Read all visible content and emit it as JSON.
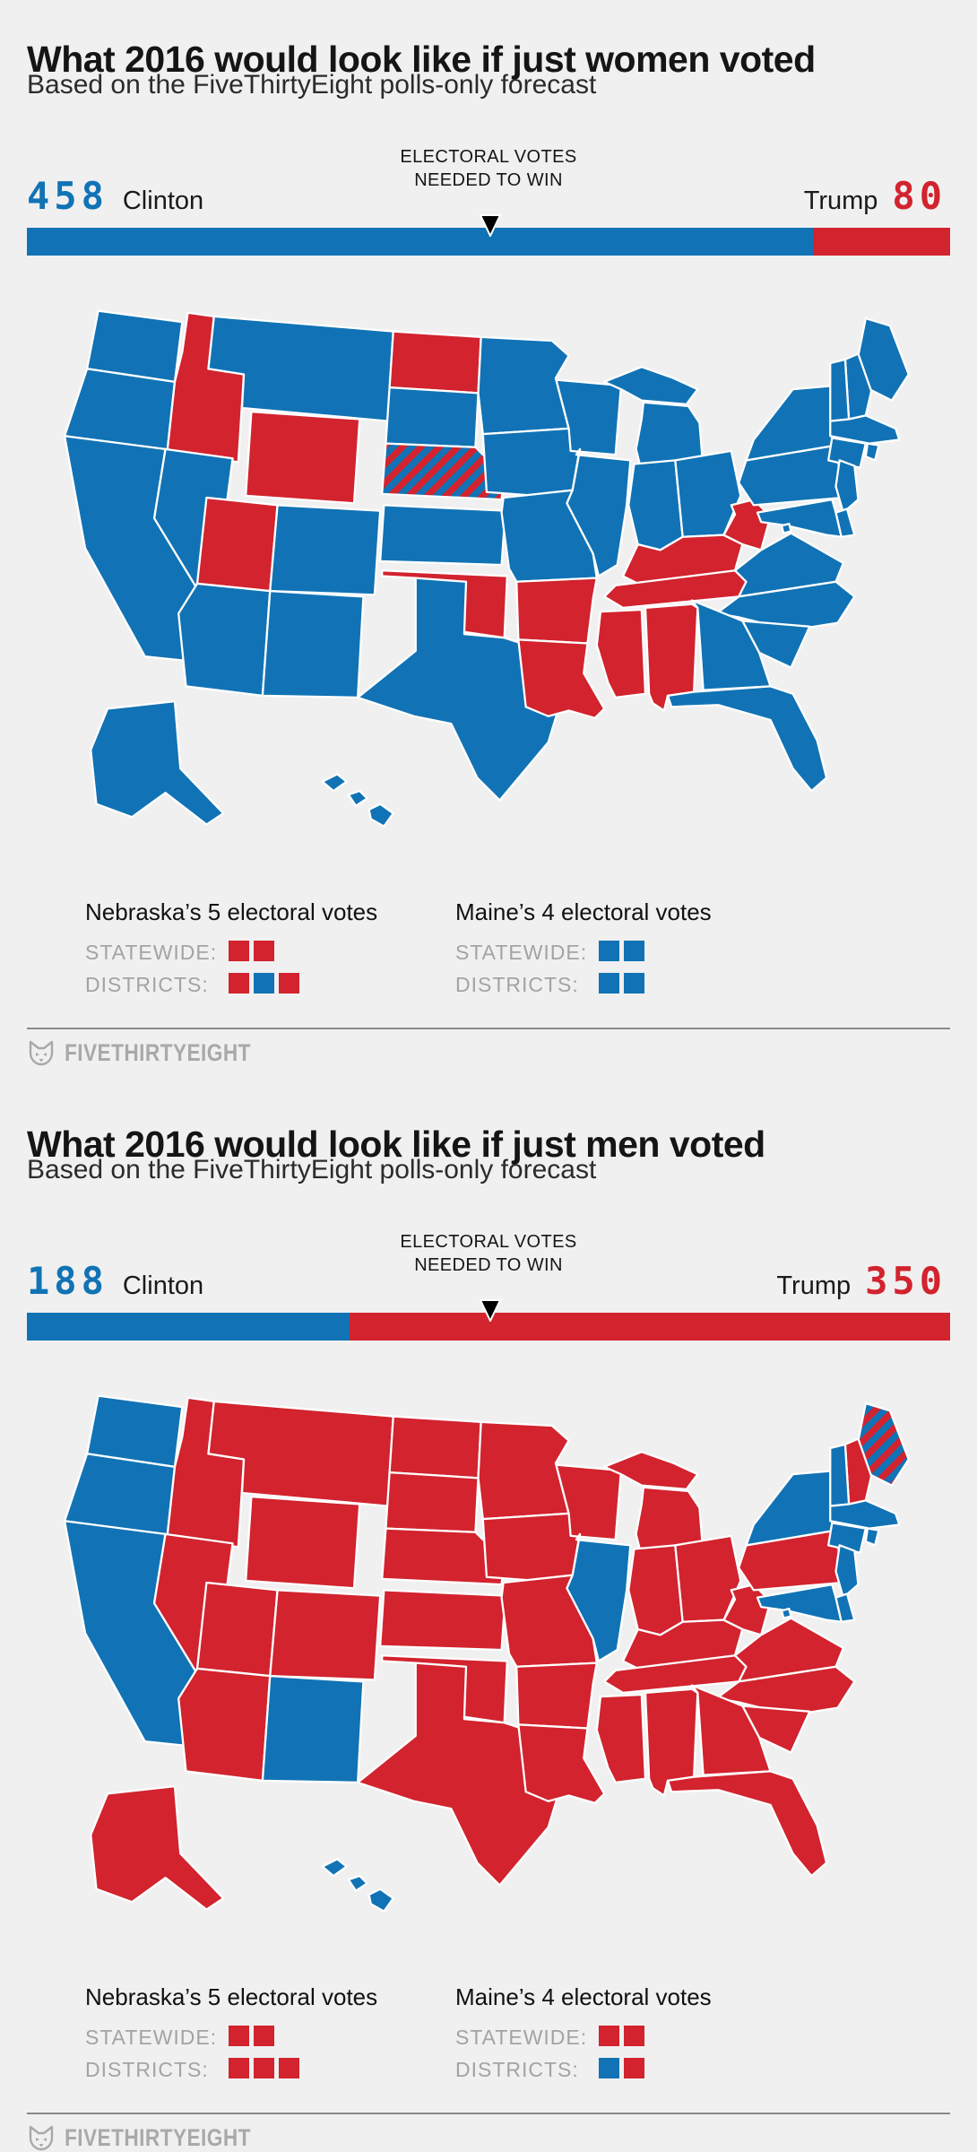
{
  "colors": {
    "dem": "#1173B5",
    "rep": "#D2232E",
    "background": "#F0F0F0",
    "state_border": "#FFFFFF",
    "marker": "#000000",
    "divider": "#8A8A8A",
    "gray_label": "#A3A3A3",
    "footer_gray": "#A9A9A9"
  },
  "footer": {
    "brand": "FIVETHIRTYEIGHT",
    "logo": "fox-icon"
  },
  "sections": [
    {
      "title": "What 2016 would look like if just women voted",
      "subtitle": "Based on the FiveThirtyEight polls-only forecast",
      "ev_label_line1": "ELECTORAL VOTES",
      "ev_label_line2": "NEEDED TO WIN",
      "clinton": {
        "name": "Clinton",
        "electoral_votes": "458"
      },
      "trump": {
        "name": "Trump",
        "electoral_votes": "80"
      },
      "legend": {
        "nebraska": {
          "title": "Nebraska’s 5 electoral votes",
          "statewide_label": "STATEWIDE:",
          "districts_label": "DISTRICTS:"
        },
        "maine": {
          "title": "Maine’s 4 electoral votes",
          "statewide_label": "STATEWIDE:",
          "districts_label": "DISTRICTS:"
        }
      }
    },
    {
      "title": "What 2016 would look like if just men voted",
      "subtitle": "Based on the FiveThirtyEight polls-only forecast",
      "ev_label_line1": "ELECTORAL VOTES",
      "ev_label_line2": "NEEDED TO WIN",
      "clinton": {
        "name": "Clinton",
        "electoral_votes": "188"
      },
      "trump": {
        "name": "Trump",
        "electoral_votes": "350"
      },
      "legend": {
        "nebraska": {
          "title": "Nebraska’s 5 electoral votes",
          "statewide_label": "STATEWIDE:",
          "districts_label": "DISTRICTS:"
        },
        "maine": {
          "title": "Maine’s 4 electoral votes",
          "statewide_label": "STATEWIDE:",
          "districts_label": "DISTRICTS:"
        }
      }
    }
  ],
  "chart_data": [
    {
      "type": "bar+choropleth",
      "title": "What 2016 would look like if just women voted",
      "subtitle": "Based on the FiveThirtyEight polls-only forecast",
      "bar": {
        "clinton": 458,
        "trump": 80,
        "total": 538,
        "needed": 270,
        "needed_label": "ELECTORAL VOTES NEEDED TO WIN"
      },
      "legend_squares": {
        "nebraska_statewide": [
          "R",
          "R"
        ],
        "nebraska_districts": [
          "R",
          "B",
          "R"
        ],
        "maine_statewide": [
          "B",
          "B"
        ],
        "maine_districts": [
          "B",
          "B"
        ]
      },
      "winner_by_state": {
        "AL": "R",
        "AK": "D",
        "AZ": "D",
        "AR": "R",
        "CA": "D",
        "CO": "D",
        "CT": "D",
        "DE": "D",
        "DC": "D",
        "FL": "D",
        "GA": "D",
        "HI": "D",
        "ID": "R",
        "IL": "D",
        "IN": "D",
        "IA": "D",
        "KS": "D",
        "KY": "R",
        "LA": "R",
        "ME": "D",
        "MD": "D",
        "MA": "D",
        "MI": "D",
        "MN": "D",
        "MS": "R",
        "MO": "D",
        "MT": "D",
        "NE": "S",
        "NV": "D",
        "NH": "D",
        "NJ": "D",
        "NM": "D",
        "NY": "D",
        "NC": "D",
        "ND": "R",
        "OH": "D",
        "OK": "R",
        "OR": "D",
        "PA": "D",
        "RI": "D",
        "SC": "D",
        "SD": "D",
        "TN": "R",
        "TX": "D",
        "UT": "R",
        "VT": "D",
        "VA": "D",
        "WA": "D",
        "WV": "R",
        "WI": "D",
        "WY": "R"
      }
    },
    {
      "type": "bar+choropleth",
      "title": "What 2016 would look like if just men voted",
      "subtitle": "Based on the FiveThirtyEight polls-only forecast",
      "bar": {
        "clinton": 188,
        "trump": 350,
        "total": 538,
        "needed": 270,
        "needed_label": "ELECTORAL VOTES NEEDED TO WIN"
      },
      "legend_squares": {
        "nebraska_statewide": [
          "R",
          "R"
        ],
        "nebraska_districts": [
          "R",
          "R",
          "R"
        ],
        "maine_statewide": [
          "R",
          "R"
        ],
        "maine_districts": [
          "B",
          "R"
        ]
      },
      "winner_by_state": {
        "AL": "R",
        "AK": "R",
        "AZ": "R",
        "AR": "R",
        "CA": "D",
        "CO": "R",
        "CT": "D",
        "DE": "D",
        "DC": "D",
        "FL": "R",
        "GA": "R",
        "HI": "D",
        "ID": "R",
        "IL": "D",
        "IN": "R",
        "IA": "R",
        "KS": "R",
        "KY": "R",
        "LA": "R",
        "ME": "S",
        "MD": "D",
        "MA": "D",
        "MI": "R",
        "MN": "R",
        "MS": "R",
        "MO": "R",
        "MT": "R",
        "NE": "R",
        "NV": "R",
        "NH": "R",
        "NJ": "D",
        "NM": "D",
        "NY": "D",
        "NC": "R",
        "ND": "R",
        "OH": "R",
        "OK": "R",
        "OR": "D",
        "PA": "R",
        "RI": "D",
        "SC": "R",
        "SD": "R",
        "TN": "R",
        "TX": "R",
        "UT": "R",
        "VT": "D",
        "VA": "R",
        "WA": "D",
        "WV": "R",
        "WI": "R",
        "WY": "R"
      }
    }
  ]
}
